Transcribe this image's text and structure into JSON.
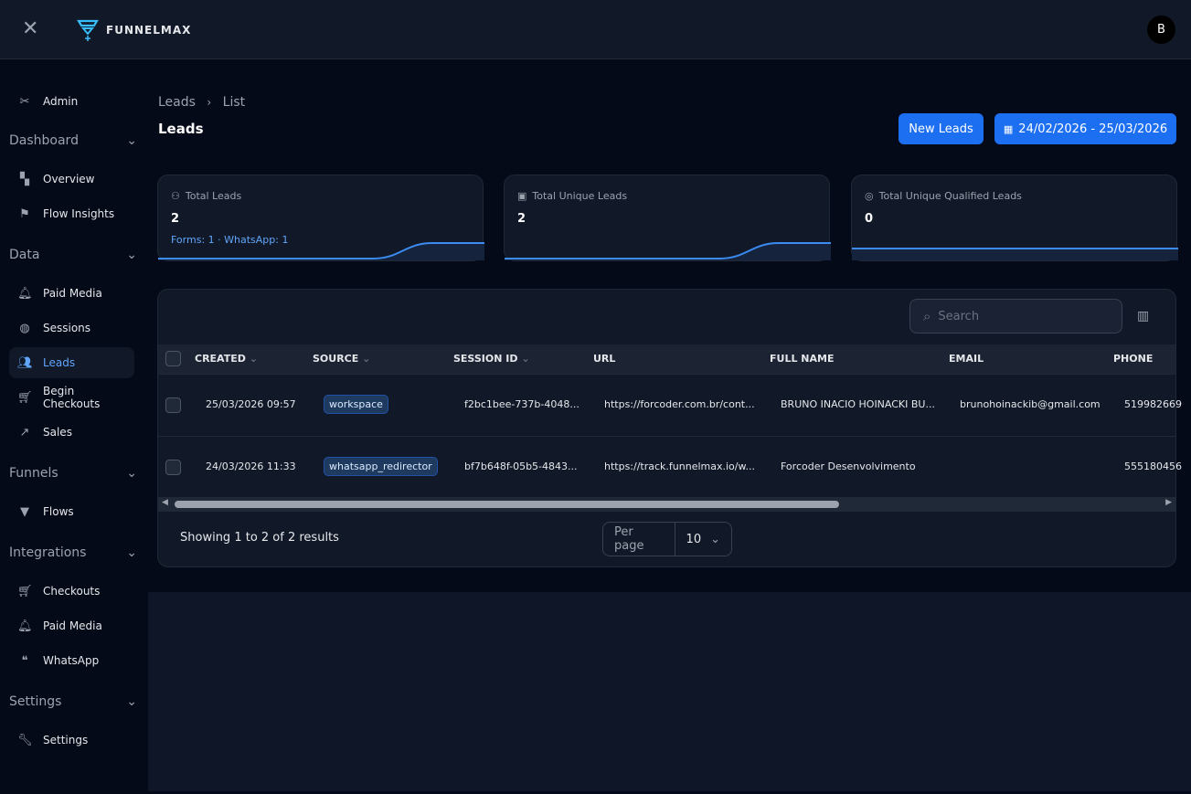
{
  "app": {
    "name": "FUNNELMAX",
    "avatar": "B",
    "brand_color": "#1d6ff2",
    "accent": "#60a5fa"
  },
  "sidebar": {
    "admin": "Admin",
    "sections": [
      {
        "label": "Dashboard",
        "items": [
          {
            "label": "Overview",
            "icon": "grid-plus-icon"
          },
          {
            "label": "Flow Insights",
            "icon": "flag-icon"
          }
        ]
      },
      {
        "label": "Data",
        "items": [
          {
            "label": "Paid Media",
            "icon": "bell-icon"
          },
          {
            "label": "Sessions",
            "icon": "globe-icon"
          },
          {
            "label": "Leads",
            "icon": "users-icon",
            "active": true
          },
          {
            "label": "Begin Checkouts",
            "icon": "cart-icon"
          },
          {
            "label": "Sales",
            "icon": "trend-up-icon"
          }
        ]
      },
      {
        "label": "Funnels",
        "items": [
          {
            "label": "Flows",
            "icon": "funnel-icon"
          }
        ]
      },
      {
        "label": "Integrations",
        "items": [
          {
            "label": "Checkouts",
            "icon": "cart-icon"
          },
          {
            "label": "Paid Media",
            "icon": "bell-icon"
          },
          {
            "label": "WhatsApp",
            "icon": "chat-icon"
          }
        ]
      },
      {
        "label": "Settings",
        "items": [
          {
            "label": "Settings",
            "icon": "wrench-icon"
          }
        ]
      }
    ]
  },
  "breadcrumb": [
    "Leads",
    "List"
  ],
  "page_title": "Leads",
  "buttons": {
    "new_leads": "New Leads",
    "date_range": "24/02/2026 - 25/03/2026"
  },
  "cards": [
    {
      "label": "Total Leads",
      "value": "2",
      "sub": "Forms: 1 · WhatsApp: 1"
    },
    {
      "label": "Total Unique Leads",
      "value": "2"
    },
    {
      "label": "Total Unique Qualified Leads",
      "value": "0"
    }
  ],
  "table": {
    "search_placeholder": "Search",
    "columns": [
      "CREATED",
      "SOURCE",
      "SESSION ID",
      "URL",
      "FULL NAME",
      "EMAIL",
      "PHONE"
    ],
    "rows": [
      {
        "created": "25/03/2026 09:57",
        "source": "workspace",
        "session": "f2bc1bee-737b-4048...",
        "url": "https://forcoder.com.br/cont...",
        "name": "BRUNO INACIO HOINACKI BU...",
        "email": "brunohoinackib@gmail.com",
        "phone": "519982669"
      },
      {
        "created": "24/03/2026 11:33",
        "source": "whatsapp_redirector",
        "session": "bf7b648f-05b5-4843...",
        "url": "https://track.funnelmax.io/w...",
        "name": "Forcoder Desenvolvimento",
        "email": "",
        "phone": "555180456"
      }
    ],
    "showing": "Showing 1 to 2 of 2 results",
    "per_page_label": "Per page",
    "per_page": "10"
  }
}
